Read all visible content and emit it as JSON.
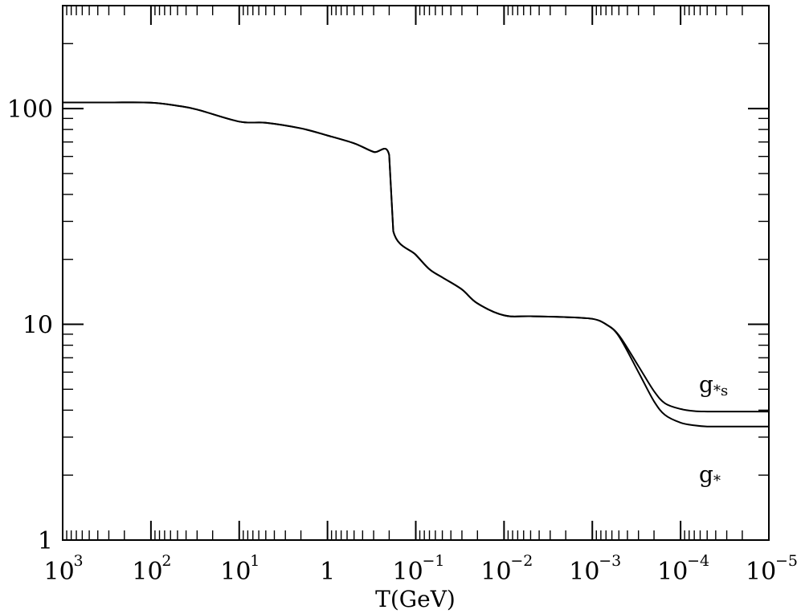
{
  "chart_data": {
    "type": "line",
    "title": "",
    "xlabel": "T(GeV)",
    "ylabel": "",
    "x_scale": "log",
    "y_scale": "log",
    "x_reversed": true,
    "xlim": [
      1000,
      1e-05
    ],
    "ylim": [
      1,
      300
    ],
    "grid": false,
    "x_ticks": [
      {
        "base": "10",
        "exp": "3"
      },
      {
        "base": "10",
        "exp": "2"
      },
      {
        "base": "10",
        "exp": "1"
      },
      {
        "base": "1",
        "exp": ""
      },
      {
        "base": "10",
        "exp": "−1"
      },
      {
        "base": "10",
        "exp": "−2"
      },
      {
        "base": "10",
        "exp": "−3"
      },
      {
        "base": "10",
        "exp": "−4"
      },
      {
        "base": "10",
        "exp": "−5"
      }
    ],
    "y_ticks": [
      "1",
      "10",
      "100"
    ],
    "series": [
      {
        "name": "g*",
        "x": [
          1000,
          300,
          100,
          50,
          30,
          10,
          5,
          2,
          1,
          0.5,
          0.3,
          0.2,
          0.18,
          0.1,
          0.07,
          0.05,
          0.03,
          0.02,
          0.01,
          0.005,
          0.002,
          0.001,
          0.0007,
          0.0005,
          0.0003,
          0.0002,
          0.00015,
          0.0001,
          7e-05,
          5e-05,
          3e-05,
          1e-05
        ],
        "y": [
          106.75,
          106.75,
          106.5,
          103,
          99,
          87,
          86,
          81,
          75,
          69,
          63,
          61,
          27,
          21,
          18,
          16.5,
          14.5,
          12.5,
          11.0,
          10.9,
          10.8,
          10.6,
          10.0,
          8.8,
          6.0,
          4.4,
          3.8,
          3.5,
          3.4,
          3.36,
          3.36,
          3.36
        ]
      },
      {
        "name": "g*s",
        "x": [
          1000,
          300,
          100,
          50,
          30,
          10,
          5,
          2,
          1,
          0.5,
          0.3,
          0.2,
          0.18,
          0.1,
          0.07,
          0.05,
          0.03,
          0.02,
          0.01,
          0.005,
          0.002,
          0.001,
          0.0007,
          0.0005,
          0.0003,
          0.0002,
          0.00015,
          0.0001,
          7e-05,
          5e-05,
          3e-05,
          1e-05
        ],
        "y": [
          106.75,
          106.75,
          106.5,
          103,
          99,
          87,
          86,
          81,
          75,
          69,
          63,
          61,
          27,
          21,
          18,
          16.5,
          14.5,
          12.5,
          11.0,
          10.9,
          10.8,
          10.6,
          10.0,
          8.9,
          6.4,
          4.9,
          4.3,
          4.05,
          3.96,
          3.94,
          3.94,
          3.94
        ]
      }
    ],
    "annotations": [
      {
        "text": "g",
        "sub": "*s",
        "target": "g*s"
      },
      {
        "text": "g",
        "sub": "*",
        "target": "g*"
      }
    ]
  }
}
